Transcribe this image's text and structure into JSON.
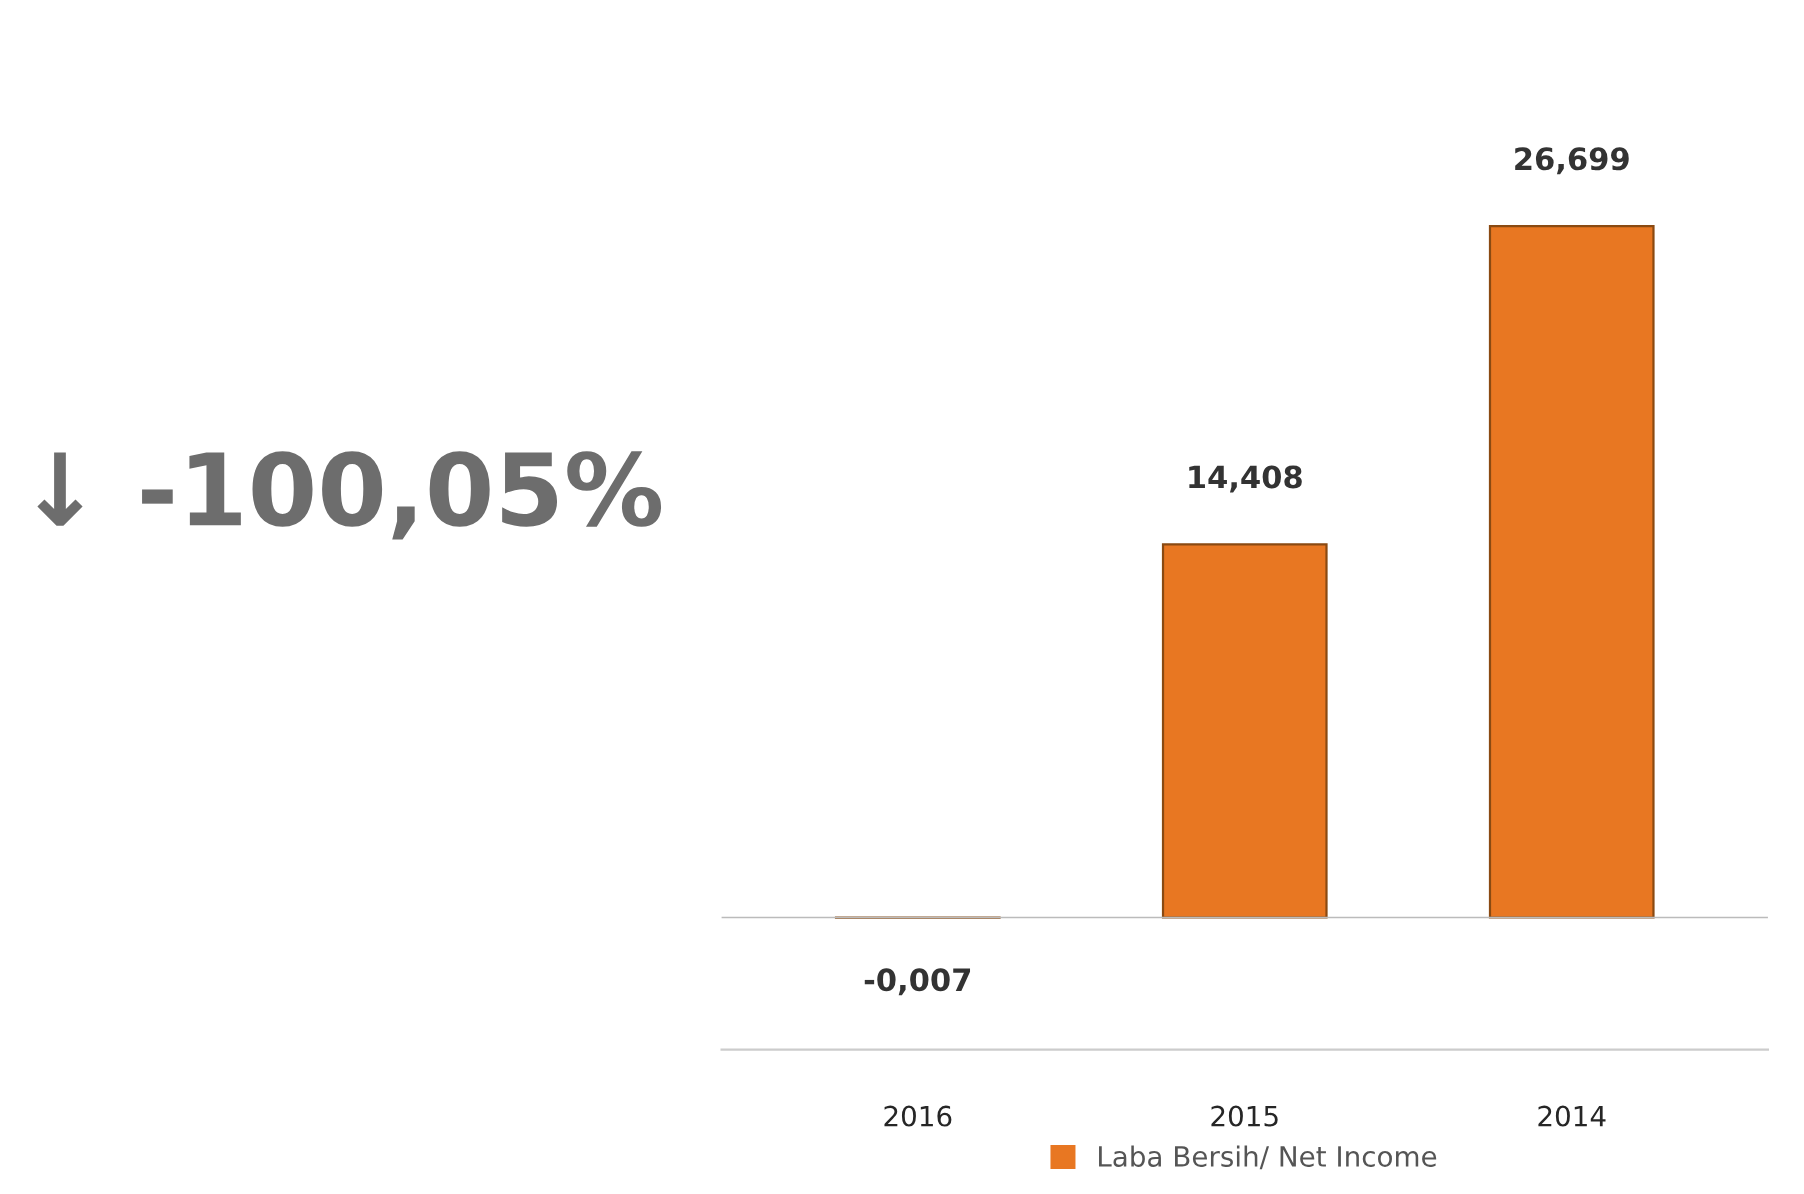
{
  "chart_data": {
    "type": "bar",
    "categories": [
      "2016",
      "2015",
      "2014"
    ],
    "series": [
      {
        "name": "Laba Bersih/ Net Income",
        "color": "#e87722",
        "colors": [
          "#c8825c",
          "#e87722",
          "#e87722"
        ],
        "values": [
          -0.007,
          14.408,
          26.699
        ],
        "value_labels": [
          "-0,007",
          "14,408",
          "26,699"
        ]
      }
    ],
    "annotations": [
      "↓ -100,05%"
    ],
    "legend": "bottom",
    "grid": false
  }
}
